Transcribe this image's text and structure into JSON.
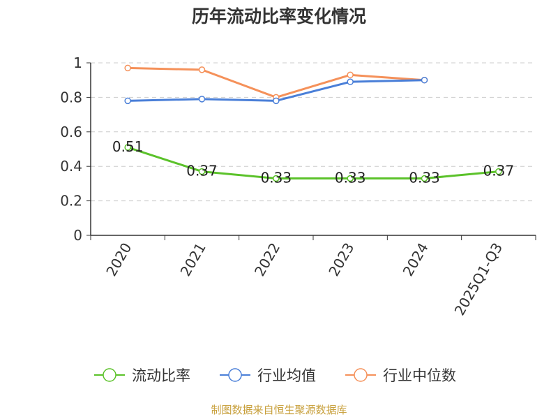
{
  "chart_data": {
    "type": "line",
    "title": "历年流动比率变化情况",
    "categories": [
      "2020",
      "2021",
      "2022",
      "2023",
      "2024",
      "2025Q1-Q3"
    ],
    "ylim": [
      0,
      1
    ],
    "yticks": [
      "0",
      "0.2",
      "0.4",
      "0.6",
      "0.8",
      "1"
    ],
    "grid": true,
    "legend_position": "bottom",
    "series": [
      {
        "name": "流动比率",
        "color": "#5bc22a",
        "values": [
          0.51,
          0.37,
          0.33,
          0.33,
          0.33,
          0.37
        ],
        "labels": [
          "0.51",
          "0.37",
          "0.33",
          "0.33",
          "0.33",
          "0.37"
        ]
      },
      {
        "name": "行业均值",
        "color": "#4a7fd8",
        "values": [
          0.78,
          0.79,
          0.78,
          0.89,
          0.9,
          null
        ]
      },
      {
        "name": "行业中位数",
        "color": "#f5915a",
        "values": [
          0.97,
          0.96,
          0.8,
          0.93,
          0.9,
          null
        ]
      }
    ]
  },
  "footer": {
    "source": "制图数据来自恒生聚源数据库"
  }
}
